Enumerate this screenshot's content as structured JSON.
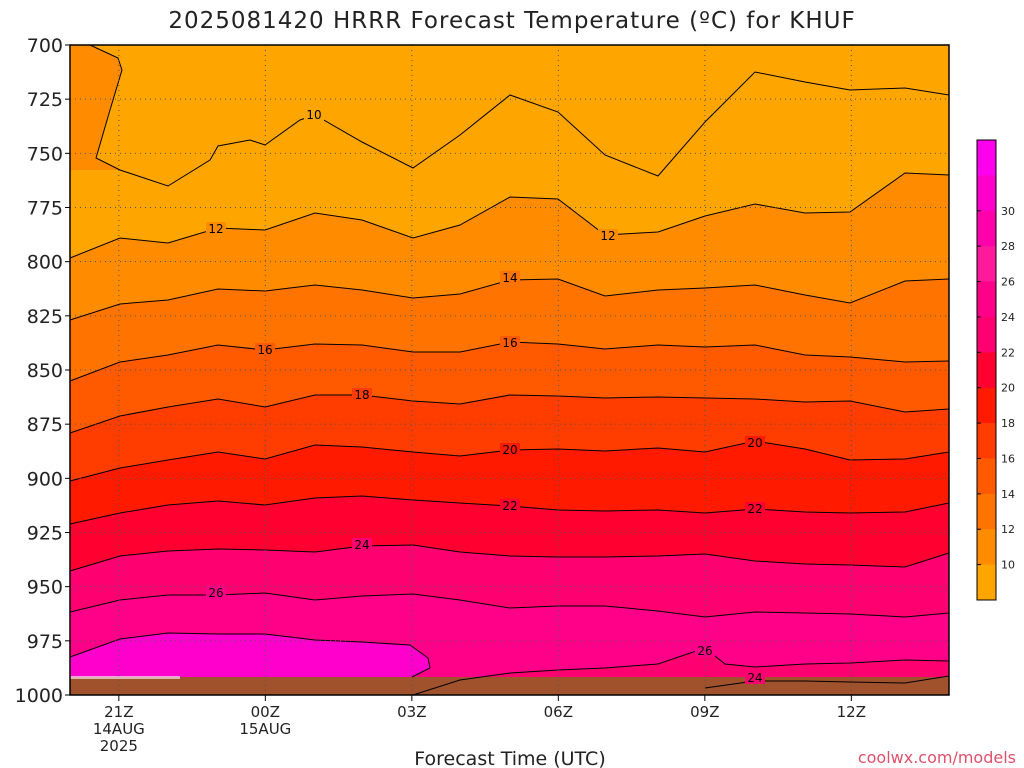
{
  "chart_data": {
    "type": "contour",
    "title": "2025081420 HRRR Forecast Temperature (ºC) for KHUF",
    "xlabel": "Forecast Time (UTC)",
    "ylabel": "",
    "credit": "coolwx.com/models",
    "y_axis": {
      "ticks": [
        700,
        725,
        750,
        775,
        800,
        825,
        850,
        875,
        900,
        925,
        950,
        975,
        1000
      ],
      "range": [
        700,
        1000
      ],
      "inverted": true
    },
    "x_axis": {
      "ticks": [
        {
          "hour": 1,
          "lines": [
            "21Z",
            "14AUG",
            "2025"
          ]
        },
        {
          "hour": 4,
          "lines": [
            "00Z",
            "15AUG"
          ]
        },
        {
          "hour": 7,
          "lines": [
            "03Z"
          ]
        },
        {
          "hour": 10,
          "lines": [
            "06Z"
          ]
        },
        {
          "hour": 13,
          "lines": [
            "09Z"
          ]
        },
        {
          "hour": 16,
          "lines": [
            "12Z"
          ]
        }
      ],
      "range": [
        0,
        18
      ]
    },
    "grid": true,
    "colorbar": {
      "labels": [
        "10",
        "12",
        "14",
        "16",
        "18",
        "20",
        "22",
        "24",
        "26",
        "28",
        "30"
      ],
      "colors": [
        "#ffa500",
        "#ff8c00",
        "#ff7300",
        "#ff5a00",
        "#ff3d00",
        "#ff1a00",
        "#ff0030",
        "#ff0070",
        "#ff0088",
        "#ff1a9c",
        "#ff00aa",
        "#ff00cc",
        "#ff00ee"
      ]
    },
    "contours": [
      {
        "level": 10,
        "label": "10",
        "label_at": [
          1,
          740
        ]
      },
      {
        "level": 12,
        "label": "12",
        "label_at": [
          3,
          776
        ],
        "label2": "12"
      },
      {
        "level": 14,
        "label": "14",
        "label_at": [
          9,
          795
        ]
      },
      {
        "level": 16,
        "label": "16",
        "label_at": [
          4,
          828
        ],
        "label2": "16"
      },
      {
        "level": 18,
        "label": "18",
        "label_at": [
          6,
          850
        ]
      },
      {
        "level": 20,
        "label": "20",
        "label_at": [
          9,
          875
        ],
        "label2": "20"
      },
      {
        "level": 22,
        "label": "22",
        "label_at": [
          9,
          902
        ],
        "label2": "22"
      },
      {
        "level": 24,
        "label": "24",
        "label_at": [
          6,
          921
        ],
        "label2": "24"
      },
      {
        "level": 26,
        "label": "26",
        "label_at": [
          3,
          949
        ],
        "label2": "26"
      }
    ]
  }
}
